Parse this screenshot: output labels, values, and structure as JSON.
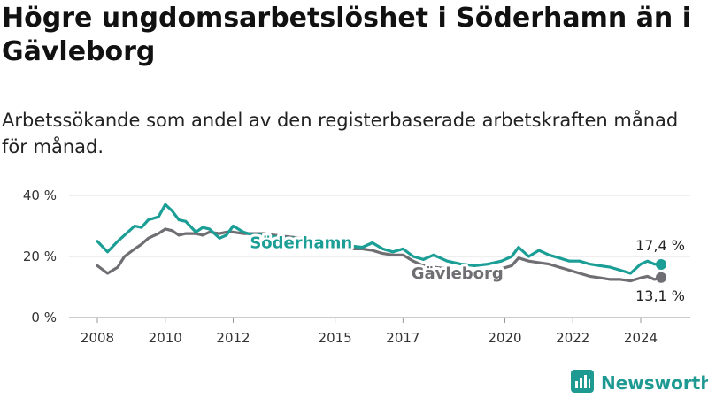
{
  "title": "Högre ungdomsarbetslöshet i Söderhamn än i Gävleborg",
  "subtitle": "Arbetssökande som andel av den registerbaserade arbetskraften månad för månad.",
  "brand": {
    "name": "Newsworthy"
  },
  "colors": {
    "soderhamn": "#1a9e95",
    "gavleborg": "#6e6e73",
    "grid": "#dcdcdc",
    "text": "#333333"
  },
  "chart_data": {
    "type": "line",
    "title": "Högre ungdomsarbetslöshet i Söderhamn än i Gävleborg",
    "subtitle": "Arbetssökande som andel av den registerbaserade arbetskraften månad för månad.",
    "xlabel": "",
    "ylabel": "",
    "xlim": [
      2007.5,
      2025.3
    ],
    "ylim": [
      0,
      40
    ],
    "yticks": [
      0,
      20,
      40
    ],
    "ytick_labels": [
      "0 %",
      "20 %",
      "40 %"
    ],
    "xticks": [
      2008,
      2010,
      2012,
      2015,
      2017,
      2020,
      2022,
      2024
    ],
    "xtick_labels": [
      "2008",
      "2010",
      "2012",
      "2015",
      "2017",
      "2020",
      "2022",
      "2024"
    ],
    "grid": true,
    "series": [
      {
        "name": "Söderhamn",
        "end_label": "17,4 %",
        "x": [
          2008.0,
          2008.3,
          2008.6,
          2008.8,
          2009.1,
          2009.3,
          2009.5,
          2009.8,
          2010.0,
          2010.2,
          2010.4,
          2010.6,
          2010.9,
          2011.1,
          2011.3,
          2011.6,
          2011.8,
          2012.0,
          2012.3,
          2012.6,
          2012.9,
          2013.2,
          2013.6,
          2014.0,
          2014.4,
          2014.8,
          2015.1,
          2015.4,
          2015.8,
          2016.1,
          2016.4,
          2016.7,
          2017.0,
          2017.3,
          2017.6,
          2017.9,
          2018.3,
          2018.7,
          2019.1,
          2019.5,
          2019.9,
          2020.2,
          2020.4,
          2020.7,
          2021.0,
          2021.3,
          2021.6,
          2021.9,
          2022.2,
          2022.5,
          2022.8,
          2023.1,
          2023.4,
          2023.7,
          2024.0,
          2024.2,
          2024.4,
          2024.6
        ],
        "values": [
          25,
          21.5,
          25,
          27,
          30,
          29.5,
          32,
          33,
          37,
          35,
          32,
          31.5,
          28,
          29.5,
          29,
          26,
          27,
          30,
          28,
          27,
          27,
          26.5,
          26,
          26,
          25.5,
          25,
          24,
          23.5,
          23,
          24.5,
          22.5,
          21.5,
          22.5,
          20,
          19,
          20.5,
          18.5,
          17.5,
          17,
          17.5,
          18.5,
          20,
          23,
          20,
          22,
          20.5,
          19.5,
          18.5,
          18.5,
          17.5,
          17,
          16.5,
          15.5,
          14.5,
          17.5,
          18.5,
          17.5,
          17.4
        ]
      },
      {
        "name": "Gävleborg",
        "end_label": "13,1 %",
        "x": [
          2008.0,
          2008.3,
          2008.6,
          2008.8,
          2009.1,
          2009.3,
          2009.5,
          2009.8,
          2010.0,
          2010.2,
          2010.4,
          2010.6,
          2010.9,
          2011.1,
          2011.3,
          2011.6,
          2011.8,
          2012.0,
          2012.3,
          2012.6,
          2012.9,
          2013.2,
          2013.6,
          2014.0,
          2014.4,
          2014.8,
          2015.1,
          2015.4,
          2015.8,
          2016.1,
          2016.4,
          2016.7,
          2017.0,
          2017.3,
          2017.6,
          2017.9,
          2018.3,
          2018.7,
          2019.1,
          2019.5,
          2019.9,
          2020.2,
          2020.4,
          2020.7,
          2021.0,
          2021.3,
          2021.6,
          2021.9,
          2022.2,
          2022.5,
          2022.8,
          2023.1,
          2023.4,
          2023.7,
          2024.0,
          2024.2,
          2024.4,
          2024.6
        ],
        "values": [
          17,
          14.5,
          16.5,
          20,
          22.5,
          24,
          26,
          27.5,
          29,
          28.5,
          27,
          27.5,
          27.5,
          27,
          28,
          27.5,
          28,
          28,
          27.5,
          27.5,
          27.5,
          27,
          26.5,
          26,
          25,
          24.5,
          23.5,
          22.5,
          22.5,
          22,
          21,
          20.5,
          20.5,
          18.5,
          17,
          16.5,
          16,
          15.5,
          15,
          15.5,
          16,
          17,
          19.5,
          18.5,
          18,
          17.5,
          16.5,
          15.5,
          14.5,
          13.5,
          13,
          12.5,
          12.5,
          12,
          13,
          13.5,
          12.5,
          13.1
        ]
      }
    ],
    "annotations": [
      {
        "text": "Söderhamn",
        "series": "Söderhamn"
      },
      {
        "text": "Gävleborg",
        "series": "Gävleborg"
      }
    ],
    "legend": "inline labels"
  }
}
